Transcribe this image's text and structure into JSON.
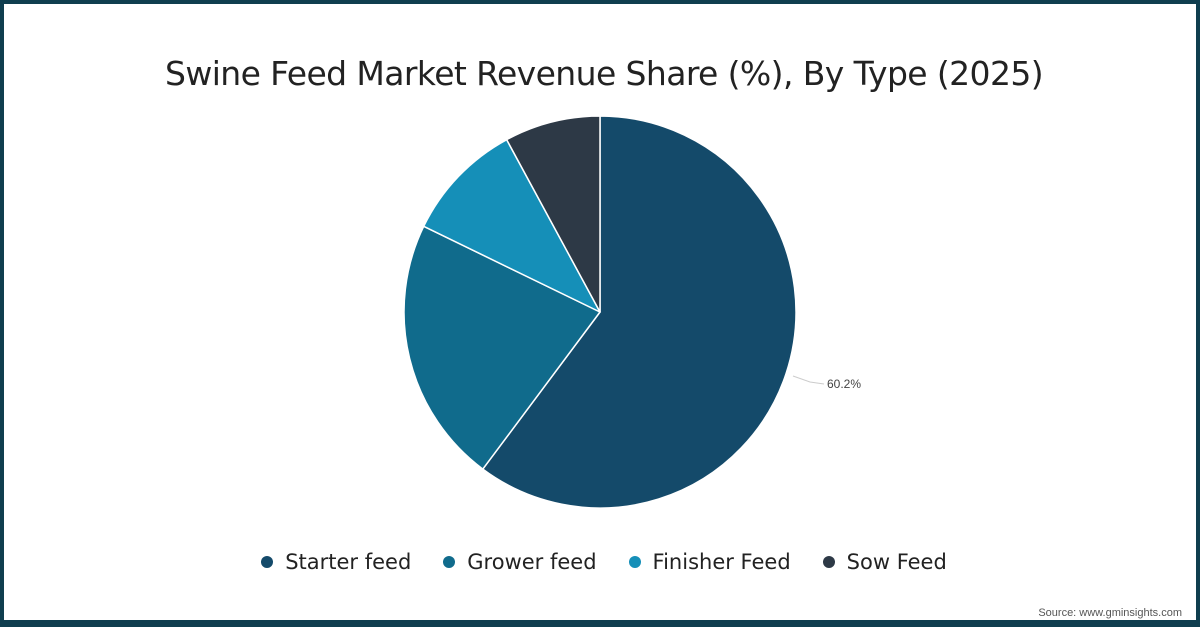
{
  "chart_data": {
    "type": "pie",
    "title": "Swine Feed Market Revenue Share (%), By Type (2025)",
    "categories": [
      "Starter feed",
      "Grower feed",
      "Finisher Feed",
      "Sow Feed"
    ],
    "values": [
      60.2,
      22.0,
      9.9,
      7.9
    ],
    "labeled_values": {
      "Starter feed": "60.2%"
    },
    "colors": [
      "#144a6a",
      "#106b8c",
      "#158fb8",
      "#2d3946"
    ],
    "legend_position": "bottom",
    "start_angle_deg": 0,
    "direction": "clockwise"
  },
  "header": {
    "title": "Swine Feed Market Revenue Share (%), By Type (2025)"
  },
  "legend": {
    "items": [
      {
        "label": "Starter feed",
        "color": "#144a6a"
      },
      {
        "label": "Grower feed",
        "color": "#106b8c"
      },
      {
        "label": "Finisher Feed",
        "color": "#158fb8"
      },
      {
        "label": "Sow Feed",
        "color": "#2d3946"
      }
    ]
  },
  "labels": {
    "starter": "60.2%"
  },
  "footer": {
    "source": "Source: www.gminsights.com"
  },
  "theme": {
    "border": "#0f3e4f",
    "background": "#ffffff"
  }
}
